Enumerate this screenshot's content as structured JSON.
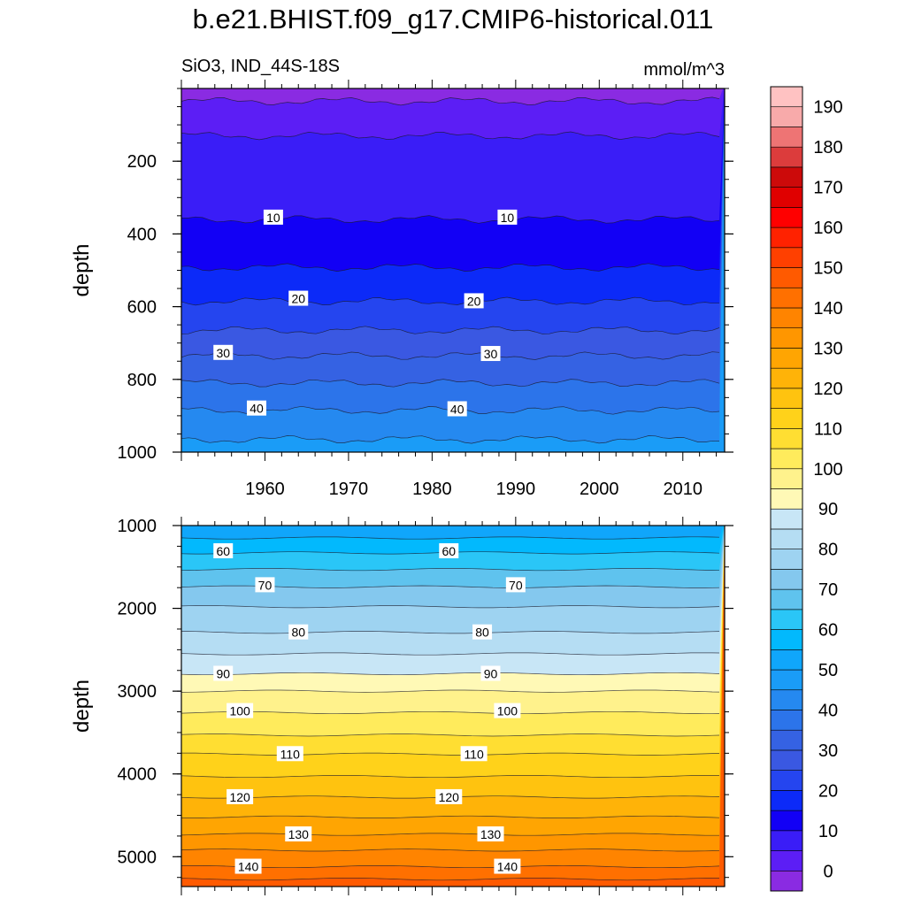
{
  "chart_data": {
    "type": "heatmap",
    "title": "b.e21.BHIST.f09_g17.CMIP6-historical.011",
    "left_subtitle": "SiO3, IND_44S-18S",
    "right_subtitle": "mmol/m^3",
    "x": {
      "range": [
        1950,
        2015
      ],
      "tick_labels": [
        "1960",
        "1970",
        "1980",
        "1990",
        "2000",
        "2010"
      ],
      "tick_values": [
        1960,
        1970,
        1980,
        1990,
        2000,
        2010
      ]
    },
    "panels": [
      {
        "name": "upper",
        "ylabel": "depth",
        "ylim": [
          0,
          1000
        ],
        "y_reversed": true,
        "y_tick_labels": [
          "200",
          "400",
          "600",
          "800",
          "1000"
        ],
        "y_tick_values": [
          200,
          400,
          600,
          800,
          1000
        ],
        "contours": [
          {
            "level": 0,
            "depth": 35
          },
          {
            "level": 5,
            "depth": 130
          },
          {
            "level": 10,
            "depth": 360
          },
          {
            "level": 15,
            "depth": 492
          },
          {
            "level": 20,
            "depth": 585
          },
          {
            "level": 25,
            "depth": 665
          },
          {
            "level": 30,
            "depth": 735
          },
          {
            "level": 35,
            "depth": 810
          },
          {
            "level": 40,
            "depth": 885
          },
          {
            "level": 45,
            "depth": 965
          }
        ],
        "contour_labels": [
          {
            "text": "10",
            "year": 1961,
            "depth": 355
          },
          {
            "text": "10",
            "year": 1989,
            "depth": 355
          },
          {
            "text": "20",
            "year": 1964,
            "depth": 578
          },
          {
            "text": "20",
            "year": 1985,
            "depth": 585
          },
          {
            "text": "30",
            "year": 1955,
            "depth": 727
          },
          {
            "text": "30",
            "year": 1987,
            "depth": 730
          },
          {
            "text": "40",
            "year": 1959,
            "depth": 880
          },
          {
            "text": "40",
            "year": 1983,
            "depth": 882
          }
        ]
      },
      {
        "name": "lower",
        "ylabel": "depth",
        "ylim": [
          1000,
          5360
        ],
        "y_reversed": true,
        "y_tick_labels": [
          "1000",
          "2000",
          "3000",
          "4000",
          "5000"
        ],
        "y_tick_values": [
          1000,
          2000,
          3000,
          4000,
          5000
        ],
        "contours": [
          {
            "level": 55,
            "depth": 1150
          },
          {
            "level": 60,
            "depth": 1330
          },
          {
            "level": 65,
            "depth": 1530
          },
          {
            "level": 70,
            "depth": 1740
          },
          {
            "level": 75,
            "depth": 1980
          },
          {
            "level": 80,
            "depth": 2290
          },
          {
            "level": 85,
            "depth": 2550
          },
          {
            "level": 90,
            "depth": 2790
          },
          {
            "level": 95,
            "depth": 3000
          },
          {
            "level": 100,
            "depth": 3260
          },
          {
            "level": 105,
            "depth": 3530
          },
          {
            "level": 110,
            "depth": 3760
          },
          {
            "level": 115,
            "depth": 4030
          },
          {
            "level": 120,
            "depth": 4280
          },
          {
            "level": 125,
            "depth": 4520
          },
          {
            "level": 130,
            "depth": 4730
          },
          {
            "level": 135,
            "depth": 4920
          },
          {
            "level": 140,
            "depth": 5120
          },
          {
            "level": 145,
            "depth": 5270
          }
        ],
        "contour_labels": [
          {
            "text": "60",
            "year": 1955,
            "depth": 1310
          },
          {
            "text": "60",
            "year": 1982,
            "depth": 1310
          },
          {
            "text": "70",
            "year": 1960,
            "depth": 1720
          },
          {
            "text": "70",
            "year": 1990,
            "depth": 1720
          },
          {
            "text": "80",
            "year": 1964,
            "depth": 2290
          },
          {
            "text": "80",
            "year": 1986,
            "depth": 2290
          },
          {
            "text": "90",
            "year": 1955,
            "depth": 2790
          },
          {
            "text": "90",
            "year": 1987,
            "depth": 2790
          },
          {
            "text": "100",
            "year": 1957,
            "depth": 3240
          },
          {
            "text": "100",
            "year": 1989,
            "depth": 3240
          },
          {
            "text": "110",
            "year": 1963,
            "depth": 3760
          },
          {
            "text": "110",
            "year": 1985,
            "depth": 3760
          },
          {
            "text": "120",
            "year": 1957,
            "depth": 4280
          },
          {
            "text": "120",
            "year": 1982,
            "depth": 4280
          },
          {
            "text": "130",
            "year": 1964,
            "depth": 4730
          },
          {
            "text": "130",
            "year": 1987,
            "depth": 4730
          },
          {
            "text": "140",
            "year": 1958,
            "depth": 5120
          },
          {
            "text": "140",
            "year": 1989,
            "depth": 5120
          }
        ]
      }
    ],
    "colorbar": {
      "levels": [
        0,
        5,
        10,
        15,
        20,
        25,
        30,
        35,
        40,
        45,
        50,
        55,
        60,
        65,
        70,
        75,
        80,
        85,
        90,
        95,
        100,
        105,
        110,
        115,
        120,
        125,
        130,
        135,
        140,
        145,
        150,
        155,
        160,
        165,
        170,
        175,
        180,
        185,
        190
      ],
      "tick_labels": [
        "0",
        "10",
        "20",
        "30",
        "40",
        "50",
        "60",
        "70",
        "80",
        "90",
        "100",
        "110",
        "120",
        "130",
        "140",
        "150",
        "160",
        "170",
        "180",
        "190"
      ],
      "colors": [
        "#8a2be2",
        "#5c1ef5",
        "#3a1df7",
        "#1200f5",
        "#0c2af8",
        "#2545ef",
        "#3a58e2",
        "#3562e3",
        "#2c74ea",
        "#2589f0",
        "#1a9cf7",
        "#10a6fb",
        "#02b9fd",
        "#2ac6f7",
        "#5fc3ee",
        "#84c8ee",
        "#9ed3f1",
        "#b5ddf3",
        "#c8e6f6",
        "#fff9b6",
        "#fff28c",
        "#ffeb5c",
        "#ffde32",
        "#ffd21a",
        "#ffc30f",
        "#ffb308",
        "#ffa502",
        "#ff9600",
        "#ff8400",
        "#ff7000",
        "#ff5a00",
        "#ff4000",
        "#ff2200",
        "#ff0000",
        "#e00000",
        "#cc0a0a",
        "#dc3c3c",
        "#ee7474",
        "#f8aaaa",
        "#ffc2c2"
      ]
    }
  }
}
